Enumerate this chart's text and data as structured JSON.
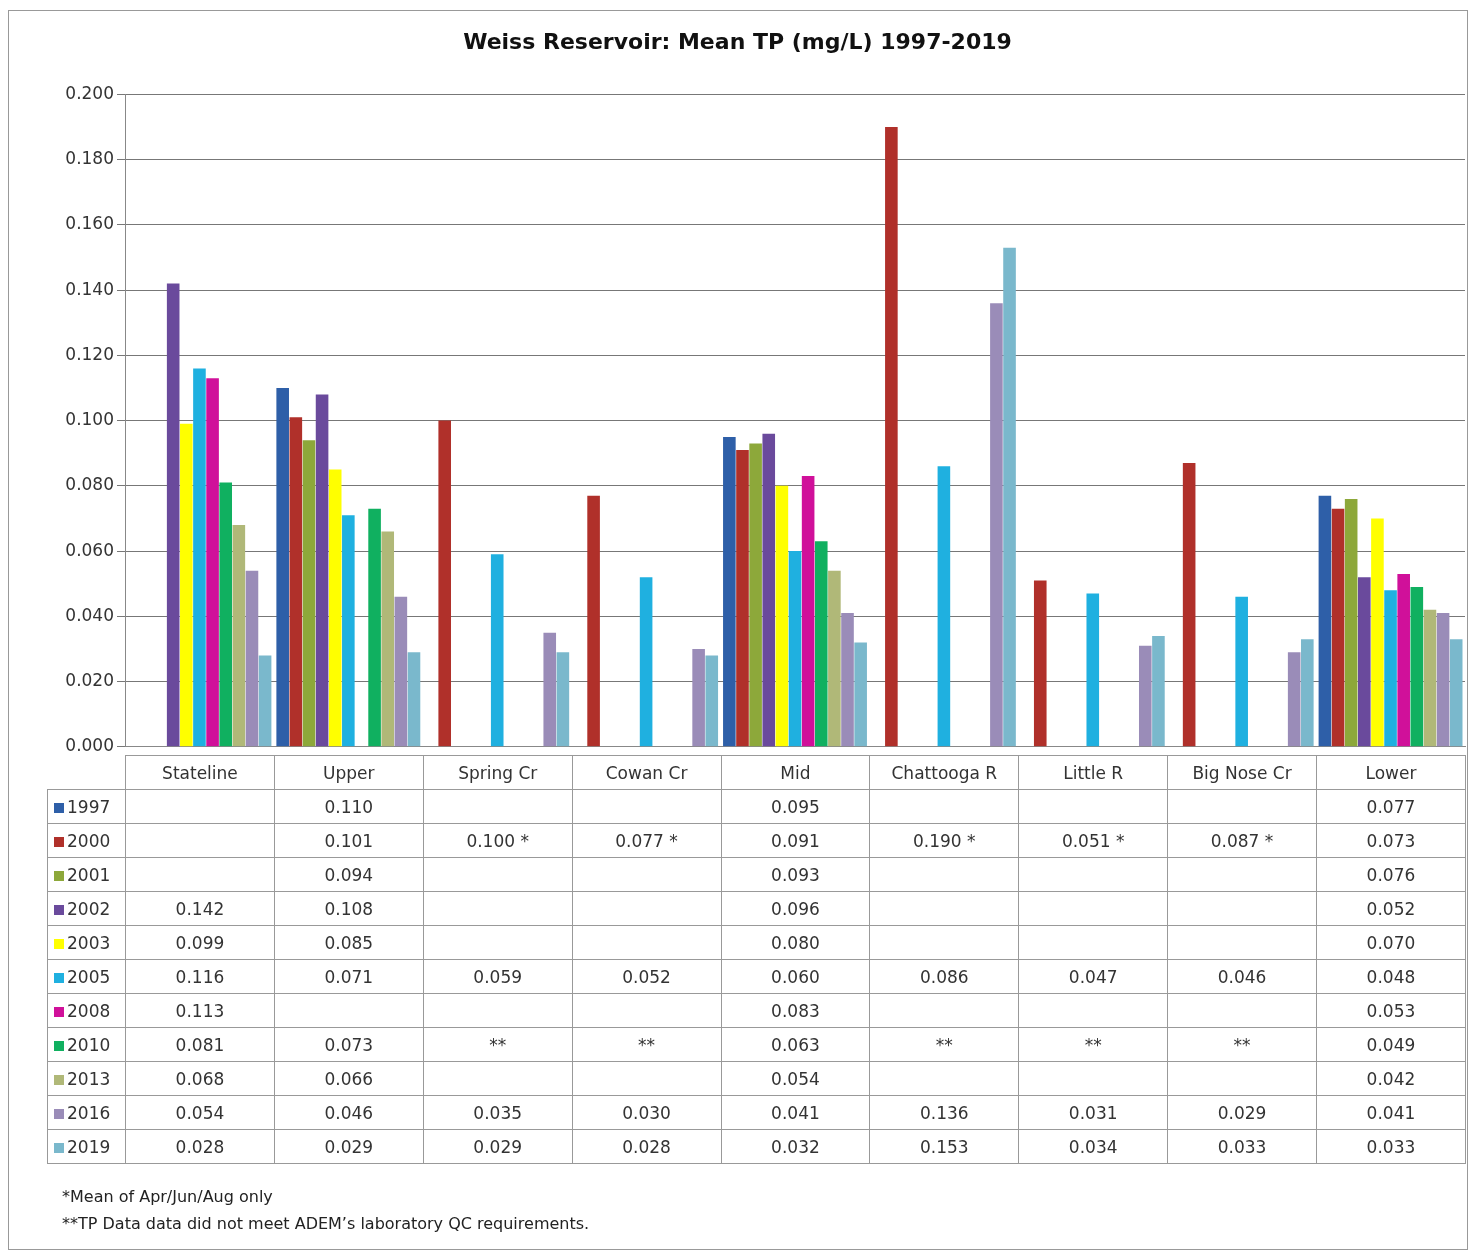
{
  "chart_data": {
    "type": "bar",
    "title": "Weiss Reservoir: Mean TP (mg/L) 1997-2019",
    "categories": [
      "Stateline",
      "Upper",
      "Spring Cr",
      "Cowan Cr",
      "Mid",
      "Chattooga R",
      "Little R",
      "Big Nose Cr",
      "Lower"
    ],
    "ylim": [
      0,
      0.2
    ],
    "yticks": [
      {
        "value": 0,
        "label": "0.000"
      },
      {
        "value": 0.02,
        "label": "0.020"
      },
      {
        "value": 0.04,
        "label": "0.040"
      },
      {
        "value": 0.06,
        "label": "0.060"
      },
      {
        "value": 0.08,
        "label": "0.080"
      },
      {
        "value": 0.1,
        "label": "0.100"
      },
      {
        "value": 0.12,
        "label": "0.120"
      },
      {
        "value": 0.14,
        "label": "0.140"
      },
      {
        "value": 0.16,
        "label": "0.160"
      },
      {
        "value": 0.18,
        "label": "0.180"
      },
      {
        "value": 0.2,
        "label": "0.200"
      }
    ],
    "grid": "y",
    "legend": "bottom left",
    "series": [
      {
        "name": "1997",
        "color": "#2e5fa8",
        "values": [
          null,
          0.11,
          null,
          null,
          0.095,
          null,
          null,
          null,
          0.077
        ],
        "value_labels": [
          null,
          "0.110",
          null,
          null,
          "0.095",
          null,
          null,
          null,
          "0.077"
        ]
      },
      {
        "name": "2000",
        "color": "#b0302a",
        "values": [
          null,
          0.101,
          0.1,
          0.077,
          0.091,
          0.19,
          0.051,
          0.087,
          0.073
        ],
        "value_labels": [
          null,
          "0.101",
          "0.100 *",
          "0.077 *",
          "0.091",
          "0.190 *",
          "0.051 *",
          "0.087 *",
          "0.073"
        ]
      },
      {
        "name": "2001",
        "color": "#8da83a",
        "values": [
          null,
          0.094,
          null,
          null,
          0.093,
          null,
          null,
          null,
          0.076
        ],
        "value_labels": [
          null,
          "0.094",
          null,
          null,
          "0.093",
          null,
          null,
          null,
          "0.076"
        ]
      },
      {
        "name": "2002",
        "color": "#6a4a9c",
        "values": [
          0.142,
          0.108,
          null,
          null,
          0.096,
          null,
          null,
          null,
          0.052
        ],
        "value_labels": [
          "0.142",
          "0.108",
          null,
          null,
          "0.096",
          null,
          null,
          null,
          "0.052"
        ]
      },
      {
        "name": "2003",
        "color": "#ffff00",
        "values": [
          0.099,
          0.085,
          null,
          null,
          0.08,
          null,
          null,
          null,
          0.07
        ],
        "value_labels": [
          "0.099",
          "0.085",
          null,
          null,
          "0.080",
          null,
          null,
          null,
          "0.070"
        ]
      },
      {
        "name": "2005",
        "color": "#1fb0e0",
        "values": [
          0.116,
          0.071,
          0.059,
          0.052,
          0.06,
          0.086,
          0.047,
          0.046,
          0.048
        ],
        "value_labels": [
          "0.116",
          "0.071",
          "0.059",
          "0.052",
          "0.060",
          "0.086",
          "0.047",
          "0.046",
          "0.048"
        ]
      },
      {
        "name": "2008",
        "color": "#d0109a",
        "values": [
          0.113,
          null,
          null,
          null,
          0.083,
          null,
          null,
          null,
          0.053
        ],
        "value_labels": [
          "0.113",
          null,
          null,
          null,
          "0.083",
          null,
          null,
          null,
          "0.053"
        ]
      },
      {
        "name": "2010",
        "color": "#10b060",
        "values": [
          0.081,
          0.073,
          null,
          null,
          0.063,
          null,
          null,
          null,
          0.049
        ],
        "value_labels": [
          "0.081",
          "0.073",
          "**",
          "**",
          "0.063",
          "**",
          "**",
          "**",
          "0.049"
        ]
      },
      {
        "name": "2013",
        "color": "#b0b878",
        "values": [
          0.068,
          0.066,
          null,
          null,
          0.054,
          null,
          null,
          null,
          0.042
        ],
        "value_labels": [
          "0.068",
          "0.066",
          null,
          null,
          "0.054",
          null,
          null,
          null,
          "0.042"
        ]
      },
      {
        "name": "2016",
        "color": "#9a8cb8",
        "values": [
          0.054,
          0.046,
          0.035,
          0.03,
          0.041,
          0.136,
          0.031,
          0.029,
          0.041
        ],
        "value_labels": [
          "0.054",
          "0.046",
          "0.035",
          "0.030",
          "0.041",
          "0.136",
          "0.031",
          "0.029",
          "0.041"
        ]
      },
      {
        "name": "2019",
        "color": "#7ab8cc",
        "values": [
          0.028,
          0.029,
          0.029,
          0.028,
          0.032,
          0.153,
          0.034,
          0.033,
          0.033
        ],
        "value_labels": [
          "0.028",
          "0.029",
          "0.029",
          "0.028",
          "0.032",
          "0.153",
          "0.034",
          "0.033",
          "0.033"
        ]
      }
    ],
    "annotations": [
      "*Mean of Apr/Jun/Aug only",
      "**TP Data data did not meet ADEM’s laboratory QC requirements."
    ]
  }
}
